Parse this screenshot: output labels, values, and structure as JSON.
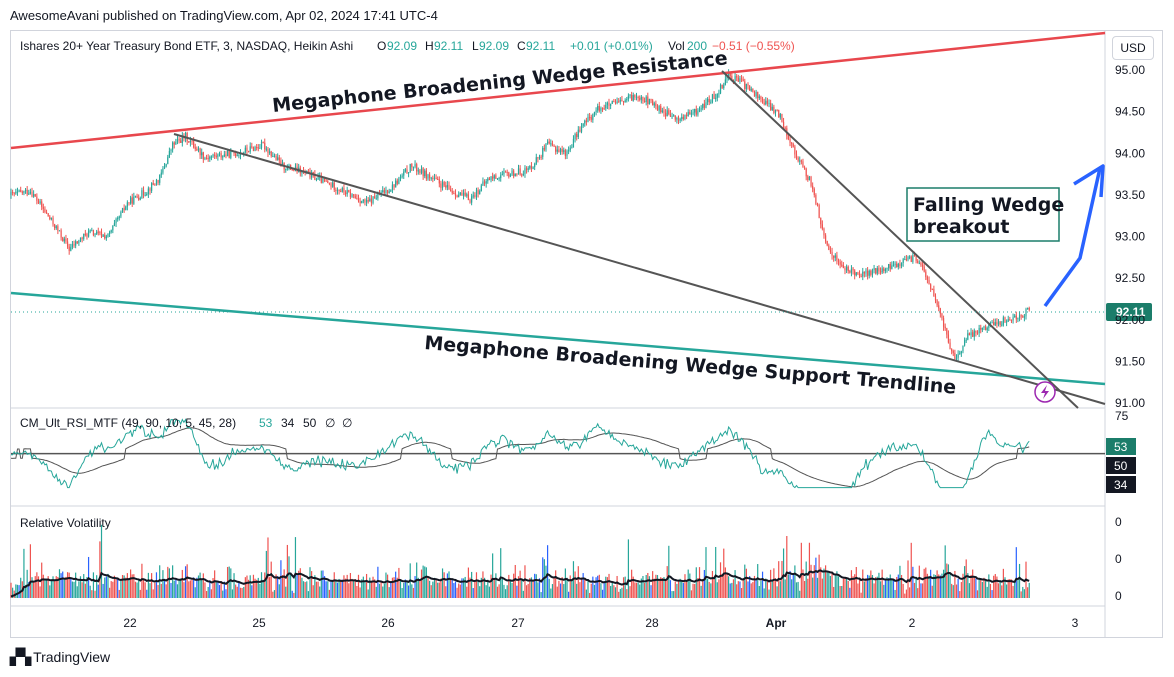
{
  "publisher_line": "AwesomeAvani published on TradingView.com, Apr 02, 2024 17:41 UTC-4",
  "header": {
    "symbol": "Ishares 20+ Year Treasury Bond ETF, 3, NASDAQ, Heikin Ashi",
    "o_label": "O",
    "o_value": "92.09",
    "h_label": "H",
    "h_value": "92.11",
    "l_label": "L",
    "l_value": "92.09",
    "c_label": "C",
    "c_value": "92.11",
    "change": "+0.01 (+0.01%)",
    "vol_label": "Vol",
    "vol_value": "200",
    "vol_change": "−0.51 (−0.55%)"
  },
  "currency_button": "USD",
  "annotations": {
    "resistance": "Megaphone  Broadening Wedge Resistance",
    "support": "Megaphone Broadening Wedge Support Trendline",
    "breakout_line1": "Falling Wedge",
    "breakout_line2": "breakout"
  },
  "price_tag": "92.11",
  "rsi_pane": {
    "title": "CM_Ult_RSI_MTF (49, 90, 10, 5, 45, 28)",
    "values": [
      "53",
      "34",
      "50",
      "∅",
      "∅"
    ],
    "tag_53": "53",
    "tag_50": "50",
    "tag_34": "34",
    "top_label": "75"
  },
  "vol_pane": {
    "title": "Relative Volatility",
    "labels": [
      "0",
      "0",
      "0"
    ]
  },
  "footer_logo": "TradingView",
  "colors": {
    "up": "#26a69a",
    "down": "#ef5350",
    "resistance": "#e8474d",
    "support": "#26a69a",
    "wedge": "#555555",
    "arrow": "#2962ff",
    "rsi_line": "#26a69a"
  },
  "chart_data": {
    "type": "candlestick",
    "y_axis": {
      "ticks": [
        "95.00",
        "94.50",
        "94.00",
        "93.50",
        "93.00",
        "92.50",
        "92.00",
        "91.50",
        "91.00"
      ],
      "range": [
        90.95,
        95.05
      ]
    },
    "x_axis": {
      "ticks": [
        "22",
        "25",
        "26",
        "27",
        "28",
        "Apr",
        "2",
        "3"
      ]
    },
    "last_price": 92.11,
    "price_path": [
      {
        "d": 0.0,
        "p": 93.5
      },
      {
        "d": 0.15,
        "p": 93.55
      },
      {
        "d": 0.35,
        "p": 93.1
      },
      {
        "d": 0.45,
        "p": 92.85
      },
      {
        "d": 0.6,
        "p": 93.05
      },
      {
        "d": 0.75,
        "p": 93.0
      },
      {
        "d": 0.9,
        "p": 93.4
      },
      {
        "d": 1.05,
        "p": 93.55
      },
      {
        "d": 1.15,
        "p": 93.7
      },
      {
        "d": 1.25,
        "p": 94.1
      },
      {
        "d": 1.35,
        "p": 94.2
      },
      {
        "d": 1.5,
        "p": 93.95
      },
      {
        "d": 1.75,
        "p": 94.0
      },
      {
        "d": 1.95,
        "p": 94.1
      },
      {
        "d": 2.1,
        "p": 93.85
      },
      {
        "d": 2.3,
        "p": 93.75
      },
      {
        "d": 2.5,
        "p": 93.6
      },
      {
        "d": 2.75,
        "p": 93.4
      },
      {
        "d": 2.95,
        "p": 93.6
      },
      {
        "d": 3.1,
        "p": 93.85
      },
      {
        "d": 3.25,
        "p": 93.7
      },
      {
        "d": 3.4,
        "p": 93.55
      },
      {
        "d": 3.55,
        "p": 93.45
      },
      {
        "d": 3.7,
        "p": 93.7
      },
      {
        "d": 3.85,
        "p": 93.75
      },
      {
        "d": 4.0,
        "p": 93.8
      },
      {
        "d": 4.15,
        "p": 94.1
      },
      {
        "d": 4.3,
        "p": 94.0
      },
      {
        "d": 4.4,
        "p": 94.3
      },
      {
        "d": 4.55,
        "p": 94.55
      },
      {
        "d": 4.7,
        "p": 94.6
      },
      {
        "d": 4.85,
        "p": 94.7
      },
      {
        "d": 5.0,
        "p": 94.55
      },
      {
        "d": 5.15,
        "p": 94.4
      },
      {
        "d": 5.3,
        "p": 94.5
      },
      {
        "d": 5.45,
        "p": 94.7
      },
      {
        "d": 5.55,
        "p": 94.95
      },
      {
        "d": 5.65,
        "p": 94.85
      },
      {
        "d": 5.8,
        "p": 94.65
      },
      {
        "d": 5.95,
        "p": 94.45
      },
      {
        "d": 6.05,
        "p": 94.05
      },
      {
        "d": 6.2,
        "p": 93.6
      },
      {
        "d": 6.3,
        "p": 92.9
      },
      {
        "d": 6.45,
        "p": 92.6
      },
      {
        "d": 6.6,
        "p": 92.55
      },
      {
        "d": 6.75,
        "p": 92.6
      },
      {
        "d": 6.9,
        "p": 92.7
      },
      {
        "d": 7.0,
        "p": 92.75
      },
      {
        "d": 7.1,
        "p": 92.45
      },
      {
        "d": 7.2,
        "p": 92.0
      },
      {
        "d": 7.3,
        "p": 91.5
      },
      {
        "d": 7.4,
        "p": 91.8
      },
      {
        "d": 7.5,
        "p": 91.9
      },
      {
        "d": 7.6,
        "p": 91.95
      },
      {
        "d": 7.7,
        "p": 92.0
      },
      {
        "d": 7.8,
        "p": 92.05
      },
      {
        "d": 7.88,
        "p": 92.11
      }
    ]
  }
}
